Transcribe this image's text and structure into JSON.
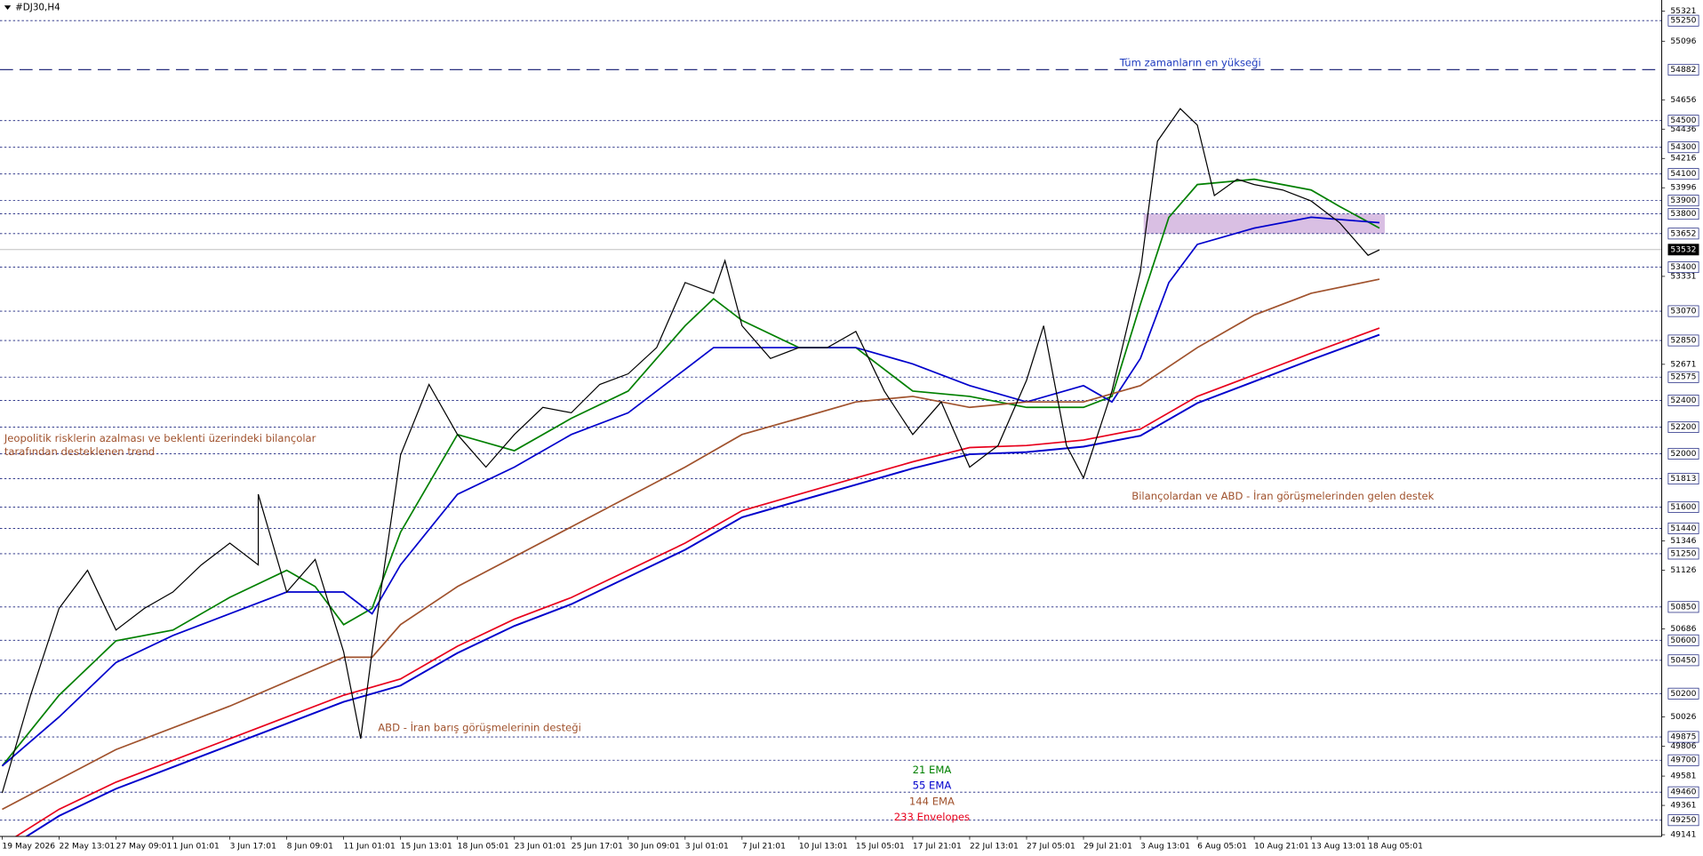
{
  "chart_data": {
    "type": "line",
    "title": "#DJ30,H4",
    "categories": [
      "19 May 2026",
      "22 May 13:01",
      "27 May 09:01",
      "1 Jun 01:01",
      "3 Jun 17:01",
      "8 Jun 09:01",
      "11 Jun 01:01",
      "15 Jun 13:01",
      "18 Jun 05:01",
      "23 Jun 01:01",
      "25 Jun 17:01",
      "30 Jun 09:01",
      "3 Jul 01:01",
      "7 Jul 21:01",
      "10 Jul 13:01",
      "15 Jul 05:01",
      "17 Jul 21:01",
      "22 Jul 13:01",
      "27 Jul 05:01",
      "29 Jul 21:01",
      "3 Aug 13:01",
      "6 Aug 05:01",
      "10 Aug 21:01",
      "13 Aug 13:01",
      "18 Aug 05:01"
    ],
    "xlim": [
      0,
      29.16
    ],
    "ylim": [
      49128,
      55405
    ],
    "yticks": [
      55321,
      55096,
      54656,
      54436,
      54216,
      53996,
      53331,
      52671,
      51346,
      51126,
      50686,
      50026,
      49806,
      49581,
      49361,
      49141
    ],
    "levels": [
      55250,
      54500,
      54300,
      54100,
      53900,
      53800,
      53652,
      53400,
      53070,
      52850,
      52575,
      52400,
      52200,
      52000,
      51813,
      51600,
      51440,
      51250,
      50850,
      50600,
      50450,
      50200,
      49875,
      49700,
      49460,
      49250
    ],
    "all_time_high": 54882,
    "current_price": 53532,
    "zone": [
      53652,
      53800
    ],
    "annotations": [
      "Tüm zamanların en yükseği",
      "Jeopolitik risklerin azalması ve beklenti üzerindeki bilançolar",
      " tarafından desteklenen trend",
      "Bilançolardan ve ABD - İran görüşmelerinden gelen destek",
      "ABD - İran barış görüşmelerinin desteği"
    ],
    "price": {
      "color": "#000000",
      "x": [
        0,
        0.5,
        1,
        1.5,
        2,
        2.5,
        3,
        3.5,
        4,
        4.5,
        4.5,
        5,
        5.5,
        6,
        6.3,
        6.5,
        7,
        7.5,
        8,
        8.5,
        9,
        9.5,
        10,
        10.5,
        11,
        11.5,
        12,
        12.5,
        12.7,
        13,
        13.5,
        14,
        14.5,
        15,
        15.5,
        16,
        16.5,
        17,
        17.5,
        18,
        18.3,
        18.7,
        19,
        19.5,
        20,
        20.3,
        20.7,
        21,
        21.3,
        21.7,
        22,
        22.5,
        23,
        23.5,
        24,
        24.2
      ],
      "values": [
        49454,
        50188,
        50840,
        51125,
        50677,
        50840,
        50962,
        51166,
        51329,
        51166,
        51696,
        50962,
        51207,
        50514,
        49862,
        50514,
        51990,
        52520,
        52144,
        51900,
        52144,
        52348,
        52307,
        52520,
        52600,
        52796,
        53285,
        53204,
        53449,
        52960,
        52715,
        52796,
        52796,
        52918,
        52470,
        52144,
        52389,
        51900,
        52062,
        52552,
        52960,
        52062,
        51818,
        52470,
        53367,
        54345,
        54590,
        54467,
        53938,
        54060,
        54020,
        53979,
        53897,
        53734,
        53489,
        53530
      ]
    },
    "series": [
      {
        "name": "21 EMA",
        "color": "#008000",
        "x": [
          0,
          1,
          2,
          3,
          4,
          5,
          5.5,
          6,
          6.5,
          7,
          8,
          9,
          10,
          11,
          12,
          12.5,
          13,
          14,
          15,
          16,
          17,
          18,
          19,
          19.5,
          20,
          20.5,
          21,
          22,
          23,
          23.5,
          24.2
        ],
        "values": [
          49657,
          50188,
          50596,
          50677,
          50922,
          51125,
          51003,
          50718,
          50840,
          51411,
          52144,
          52023,
          52266,
          52470,
          52960,
          53163,
          53000,
          52796,
          52796,
          52470,
          52430,
          52348,
          52348,
          52430,
          53122,
          53774,
          54020,
          54060,
          53979,
          53856,
          53693
        ]
      },
      {
        "name": "55 EMA",
        "color": "#0000cc",
        "x": [
          0,
          1,
          2,
          3,
          4,
          5,
          6,
          6.5,
          7,
          8,
          9,
          10,
          11,
          12,
          12.5,
          13,
          14,
          15,
          16,
          17,
          18,
          19,
          19.5,
          20,
          20.5,
          21,
          22,
          23,
          24.2
        ],
        "values": [
          49657,
          50025,
          50433,
          50636,
          50799,
          50962,
          50962,
          50799,
          51166,
          51696,
          51900,
          52144,
          52307,
          52633,
          52796,
          52796,
          52796,
          52796,
          52674,
          52511,
          52389,
          52511,
          52389,
          52715,
          53285,
          53571,
          53693,
          53775,
          53734
        ]
      },
      {
        "name": "144 EMA",
        "color": "#a0522d",
        "x": [
          0,
          2,
          4,
          6,
          6.5,
          7,
          8,
          10,
          12,
          13,
          14,
          15,
          16,
          17,
          18,
          19,
          20,
          21,
          22,
          23,
          24.2
        ],
        "values": [
          49332,
          49780,
          50106,
          50473,
          50473,
          50718,
          51003,
          51451,
          51900,
          52144,
          52266,
          52389,
          52430,
          52348,
          52389,
          52389,
          52511,
          52796,
          53041,
          53204,
          53310
        ]
      },
      {
        "name": "233 Envelopes",
        "color": "#e8001c",
        "x": [
          0,
          1,
          2,
          3,
          4,
          5,
          6,
          7,
          8,
          9,
          10,
          11,
          12,
          13,
          14,
          15,
          16,
          17,
          18,
          19,
          20,
          21,
          22,
          23,
          24.2
        ],
        "values": [
          49063,
          49332,
          49536,
          49699,
          49862,
          50025,
          50188,
          50310,
          50555,
          50758,
          50921,
          51125,
          51329,
          51573,
          51696,
          51818,
          51940,
          52046,
          52062,
          52103,
          52185,
          52430,
          52592,
          52755,
          52943
        ],
        "lower": [
          49013,
          49282,
          49486,
          49649,
          49812,
          49975,
          50138,
          50260,
          50505,
          50708,
          50871,
          51075,
          51279,
          51523,
          51646,
          51768,
          51890,
          51996,
          52012,
          52053,
          52135,
          52380,
          52542,
          52705,
          52893
        ],
        "lower_color": "#0000cc"
      }
    ]
  }
}
